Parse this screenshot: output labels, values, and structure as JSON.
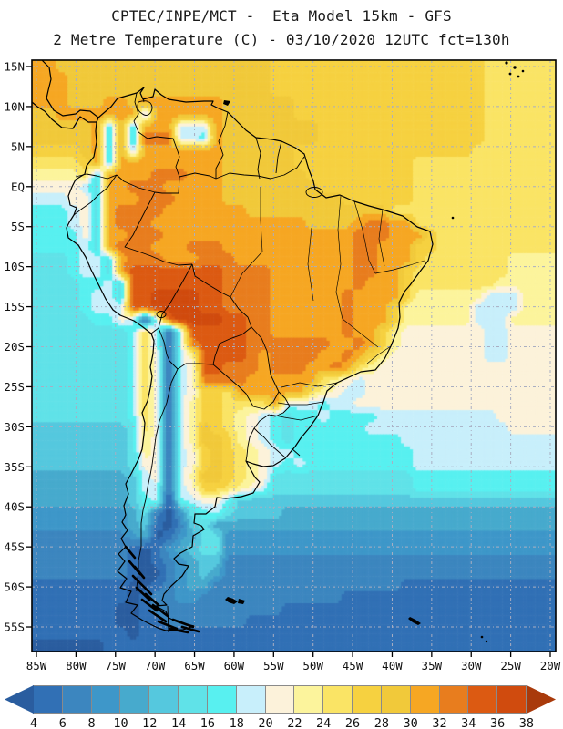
{
  "title": {
    "line1": "CPTEC/INPE/MCT -  Eta Model 15km - GFS",
    "line2": "2 Metre Temperature (C) - 03/10/2020 12UTC fct=130h"
  },
  "axis": {
    "lat_ticks": [
      {
        "text": "15N",
        "deg": 15
      },
      {
        "text": "10N",
        "deg": 10
      },
      {
        "text": "5N",
        "deg": 5
      },
      {
        "text": "EQ",
        "deg": 0
      },
      {
        "text": "5S",
        "deg": -5
      },
      {
        "text": "10S",
        "deg": -10
      },
      {
        "text": "15S",
        "deg": -15
      },
      {
        "text": "20S",
        "deg": -20
      },
      {
        "text": "25S",
        "deg": -25
      },
      {
        "text": "30S",
        "deg": -30
      },
      {
        "text": "35S",
        "deg": -35
      },
      {
        "text": "40S",
        "deg": -40
      },
      {
        "text": "45S",
        "deg": -45
      },
      {
        "text": "50S",
        "deg": -50
      },
      {
        "text": "55S",
        "deg": -55
      }
    ],
    "lon_ticks": [
      {
        "text": "85W",
        "deg": -85
      },
      {
        "text": "80W",
        "deg": -80
      },
      {
        "text": "75W",
        "deg": -75
      },
      {
        "text": "70W",
        "deg": -70
      },
      {
        "text": "65W",
        "deg": -65
      },
      {
        "text": "60W",
        "deg": -60
      },
      {
        "text": "55W",
        "deg": -55
      },
      {
        "text": "50W",
        "deg": -50
      },
      {
        "text": "45W",
        "deg": -45
      },
      {
        "text": "40W",
        "deg": -40
      },
      {
        "text": "35W",
        "deg": -35
      },
      {
        "text": "30W",
        "deg": -30
      },
      {
        "text": "25W",
        "deg": -25
      },
      {
        "text": "20W",
        "deg": -20
      }
    ]
  },
  "colorbar": {
    "tick_labels": [
      "4",
      "6",
      "8",
      "10",
      "12",
      "14",
      "16",
      "18",
      "20",
      "22",
      "24",
      "26",
      "28",
      "30",
      "32",
      "34",
      "36",
      "38"
    ],
    "under_color": "#2a5d9f",
    "over_color": "#a93a0b",
    "segment_colors": [
      "#3170b5",
      "#3c86bf",
      "#3e97c9",
      "#47aacd",
      "#55c8de",
      "#60e2e8",
      "#58f0f0",
      "#c8effb",
      "#fcf2da",
      "#fcf49c",
      "#fae465",
      "#f6d140",
      "#f1c93a",
      "#f6a723",
      "#e87d1e",
      "#dc5a12",
      "#d04b0e"
    ]
  },
  "field": {
    "comment": "2m temperature shading, RLE rows over 44x49 grid (lon -85.5..-19.5, lat 15.8..-57.8), letters map palette",
    "order": "abcdefghijklmnopqrs",
    "palette": {
      "a": "#2a5d9f",
      "b": "#3170b5",
      "c": "#3c86bf",
      "d": "#3e97c9",
      "e": "#47aacd",
      "f": "#55c8de",
      "g": "#60e2e8",
      "h": "#58f0f0",
      "i": "#c8effb",
      "j": "#fcf2da",
      "k": "#fcf49c",
      "l": "#fae465",
      "m": "#f6d140",
      "n": "#f1c93a",
      "o": "#f6a723",
      "p": "#e87d1e",
      "q": "#dc5a12",
      "r": "#d04b0e",
      "s": "#a93a0b"
    },
    "cols": 44,
    "rows": [
      "o2n18m18l6",
      "o3n17m18l6",
      "o3n17m18l6",
      "o3n3o2n1o7n6m16l6",
      "n2o7h1o6n6m16l6",
      "n5o1g1o1g1o3i3o1n8m14l6",
      "n5o1g1o1g1p3i2h1o1n8m14l6",
      "m4n1o1g1o1h1o7n6m15l7",
      "l4m1o1g1o9n6m10l12",
      "k4l1g1o4p3o3n7m9l12",
      "j4i1g1o2p3o5n8m8l12",
      "i3j2g1o3p3o4n10m6l12",
      "h3i1j1g1o1p4o7n12l14",
      "h3i1j1g1o1p3o13n4o1p2o2l12",
      "h4j1g1o2p3o16p3o3m1l10",
      "h4i1g1o1p3o3p3o11p2o3m2l10",
      "g3h1i2g1o1p3o3p3o10p2o3m1l7k4",
      "g3h1i2g1o1q8p4o7p2o2m1l8k4",
      "g4h2i1g1q8p4o7p1o3m1l7k5",
      "g4h1i2g1q2r4q2p4o6p1o4m1k6i3k3",
      "g4h1i3q2r4q2p4o6p1o3m1k6i4k3",
      "g5h2j1i1b1i1q1r4q2p2o6p1o3m1k6i3k4",
      "g8h1l1i1b1i1q5p2o6p1o2m1k1j7i2j4",
      "g8h1l1i1b1i1p1q4p7o2p1o1m1k1j7i2j4",
      "g8h1l1j1b1i1k1q4p1o1p4o2p1o1m1k1j8i2j4",
      "g8h1l1j1b1i1j1q2p3o1p3o2p1o1l1k1j15",
      "g8h1l1j1b1i1j1p4o6l1k1j1i1j16",
      "g8h1l1j1b1i1j1m2l1o6l1k1j1i2j16",
      "g8h1l1j1b1i1k1m2l4o1i3h1i2j17",
      "g8h1l1j1b1i1k1m2l1k1j1i1h1g1h2i1h4i10j5",
      "f8g1l1j1b1i1k1n1m1l1k1j1i1h1g1h6i12j4",
      "f8g1k1j1b1i1k1n2m1k1j1i1h1g1h9i13",
      "f8g1k1j1b1i1j1m1n1m1l1k1j1i2h10i12",
      "f8g1j2b1i1j1m1n1m1l1k1j1i1h1i1h9i12",
      "e8f1i1j1b1i1k1n2m1l1k1j1g12h12",
      "e8f1i2b1i1j1m2l1k1j1i1g12h12",
      "e8f1h1i1a1h1i1j2h1f27",
      "d8e1g1c1a1d1g1h1i1g1f4e23",
      "d8e1f1b1a1c1f1g1e29",
      "c8d1e1a1b1d1e1g2d28",
      "c8b1a1b1d1e1f1g2d28",
      "c8b1a1b1c1d1e1f2c28",
      "c8b1a2c1d1e1f1e1c28",
      "b8a2b1c1d1e2c16b13",
      "b8a1b1c2d2c12b18",
      "b7a2b1c11b23",
      "b7a2b2c7b26",
      "b8a1b35",
      "a6b38"
    ]
  }
}
